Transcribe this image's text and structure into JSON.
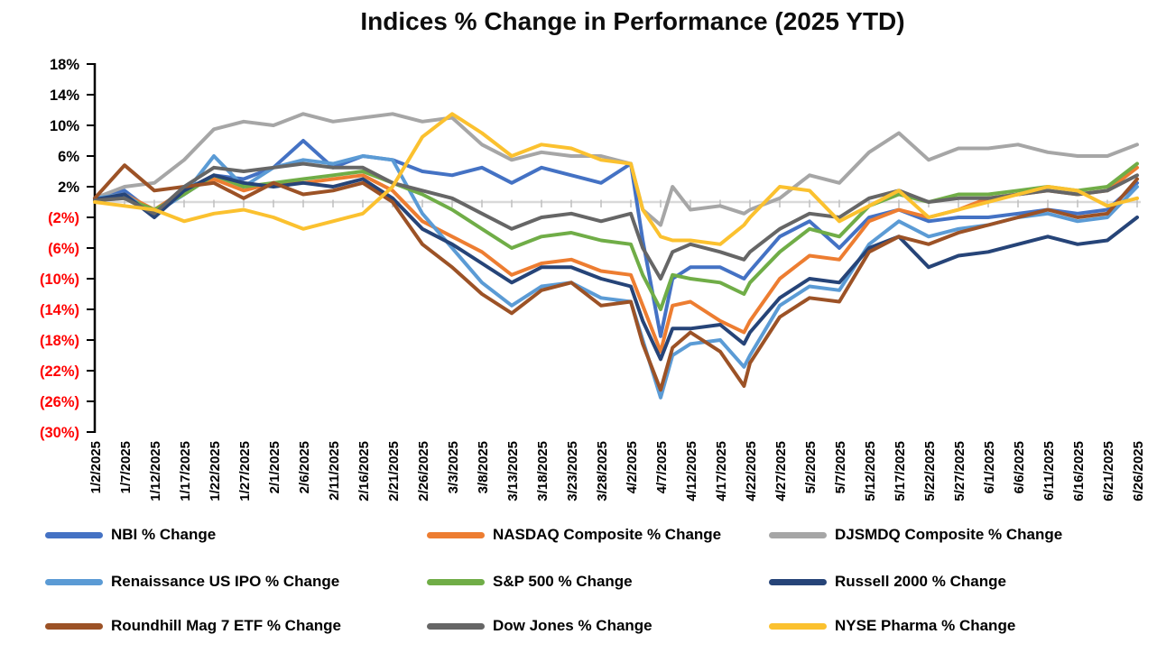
{
  "chart_data": {
    "type": "line",
    "title": "Indices % Change in Performance (2025 YTD)",
    "xlabel": "",
    "ylabel": "",
    "ylim": [
      -30,
      18
    ],
    "y_tick_step": 4,
    "grid": "horizontal-zero-line-only",
    "legend_position": "bottom",
    "axis_color": "#000000",
    "zero_line_color": "#d9d9d9",
    "x_tick_mark_color": "#bfbfbf",
    "positive_tick_label_color": "#000000",
    "negative_tick_label_color": "#ff0000",
    "y_ticks": [
      {
        "label": "18%",
        "value": 18
      },
      {
        "label": "14%",
        "value": 14
      },
      {
        "label": "10%",
        "value": 10
      },
      {
        "label": "6%",
        "value": 6
      },
      {
        "label": "2%",
        "value": 2
      },
      {
        "label": "(2%)",
        "value": -2
      },
      {
        "label": "(6%)",
        "value": -6
      },
      {
        "label": "(10%)",
        "value": -10
      },
      {
        "label": "(14%)",
        "value": -14
      },
      {
        "label": "(18%)",
        "value": -18
      },
      {
        "label": "(22%)",
        "value": -22
      },
      {
        "label": "(26%)",
        "value": -26
      },
      {
        "label": "(30%)",
        "value": -30
      }
    ],
    "categories": [
      "1/2/2025",
      "1/7/2025",
      "1/12/2025",
      "1/17/2025",
      "1/22/2025",
      "1/27/2025",
      "2/1/2025",
      "2/6/2025",
      "2/11/2025",
      "2/16/2025",
      "2/21/2025",
      "2/26/2025",
      "3/3/2025",
      "3/8/2025",
      "3/13/2025",
      "3/18/2025",
      "3/23/2025",
      "3/28/2025",
      "4/2/2025",
      "4/7/2025",
      "4/12/2025",
      "4/17/2025",
      "4/22/2025",
      "4/27/2025",
      "5/2/2025",
      "5/7/2025",
      "5/12/2025",
      "5/17/2025",
      "5/22/2025",
      "5/27/2025",
      "6/1/2025",
      "6/6/2025",
      "6/11/2025",
      "6/16/2025",
      "6/21/2025",
      "6/26/2025"
    ],
    "x_index": [
      0,
      1,
      2,
      3,
      4,
      5,
      6,
      7,
      8,
      9,
      10,
      11,
      12,
      13,
      14,
      15,
      16,
      17,
      18,
      18.4,
      19,
      19.4,
      20,
      21,
      21.8,
      22,
      23,
      24,
      25,
      26,
      27,
      28,
      29,
      30,
      31,
      32,
      33,
      34,
      35
    ],
    "series": [
      {
        "name": "NBI % Change",
        "color": "#4472c4",
        "values": [
          0.5,
          1.5,
          -1.5,
          1.0,
          3.5,
          3.0,
          4.5,
          8.0,
          4.5,
          6.0,
          5.5,
          4.0,
          3.5,
          4.5,
          2.5,
          4.5,
          3.5,
          2.5,
          5.0,
          -5.0,
          -17.5,
          -10.0,
          -8.5,
          -8.5,
          -10.0,
          -9.0,
          -4.5,
          -2.5,
          -6.0,
          -2.0,
          -1.0,
          -2.5,
          -2.0,
          -2.0,
          -1.5,
          -1.0,
          -1.5,
          -1.0,
          2.5
        ]
      },
      {
        "name": "NASDAQ Composite % Change",
        "color": "#ed7d31",
        "values": [
          0.5,
          1.0,
          -1.0,
          1.5,
          3.0,
          1.5,
          2.5,
          2.5,
          3.0,
          3.5,
          1.5,
          -2.5,
          -4.5,
          -6.5,
          -9.5,
          -8.0,
          -7.5,
          -9.0,
          -9.5,
          -13.5,
          -19.5,
          -13.5,
          -13.0,
          -15.5,
          -17.0,
          -15.5,
          -10.0,
          -7.0,
          -7.5,
          -2.5,
          -1.0,
          -2.0,
          -1.0,
          0.5,
          1.0,
          1.5,
          1.0,
          1.5,
          4.5
        ]
      },
      {
        "name": "DJSMDQ Composite % Change",
        "color": "#a6a6a6",
        "values": [
          0.5,
          2.0,
          2.5,
          5.5,
          9.5,
          10.5,
          10.0,
          11.5,
          10.5,
          11.0,
          11.5,
          10.5,
          11.0,
          7.5,
          5.5,
          6.5,
          6.0,
          6.0,
          5.0,
          -1.0,
          -3.0,
          2.0,
          -1.0,
          -0.5,
          -1.5,
          -1.0,
          0.5,
          3.5,
          2.5,
          6.5,
          9.0,
          5.5,
          7.0,
          7.0,
          7.5,
          6.5,
          6.0,
          6.0,
          7.5
        ]
      },
      {
        "name": "Renaissance US IPO % Change",
        "color": "#5b9bd5",
        "values": [
          0.5,
          1.0,
          -1.5,
          1.0,
          6.0,
          2.0,
          4.5,
          5.5,
          5.0,
          6.0,
          5.5,
          -1.5,
          -6.0,
          -10.5,
          -13.5,
          -11.0,
          -10.5,
          -12.5,
          -13.0,
          -18.0,
          -25.5,
          -20.0,
          -18.5,
          -18.0,
          -21.5,
          -20.0,
          -13.5,
          -11.0,
          -11.5,
          -5.5,
          -2.5,
          -4.5,
          -3.5,
          -3.0,
          -2.0,
          -1.5,
          -2.5,
          -2.0,
          2.0
        ]
      },
      {
        "name": "S&P 500 % Change",
        "color": "#70ad47",
        "values": [
          0.3,
          0.5,
          -1.0,
          1.0,
          3.5,
          2.0,
          2.5,
          3.0,
          3.5,
          4.0,
          2.5,
          1.0,
          -1.0,
          -3.5,
          -6.0,
          -4.5,
          -4.0,
          -5.0,
          -5.5,
          -9.5,
          -14.0,
          -9.5,
          -10.0,
          -10.5,
          -12.0,
          -10.5,
          -6.5,
          -3.5,
          -4.5,
          -0.5,
          1.0,
          0.0,
          1.0,
          1.0,
          1.5,
          2.0,
          1.5,
          2.0,
          5.0
        ]
      },
      {
        "name": "Russell 2000 % Change",
        "color": "#264478",
        "values": [
          0.3,
          1.0,
          -2.0,
          1.5,
          3.5,
          2.5,
          2.0,
          2.5,
          2.0,
          3.0,
          0.5,
          -3.5,
          -5.5,
          -8.0,
          -10.5,
          -8.5,
          -8.5,
          -10.0,
          -11.0,
          -15.5,
          -20.5,
          -16.5,
          -16.5,
          -16.0,
          -18.5,
          -17.0,
          -12.5,
          -10.0,
          -10.5,
          -6.0,
          -4.5,
          -8.5,
          -7.0,
          -6.5,
          -5.5,
          -4.5,
          -5.5,
          -5.0,
          -2.0
        ]
      },
      {
        "name": "Roundhill Mag 7 ETF % Change",
        "color": "#9c5226",
        "values": [
          0.5,
          4.8,
          1.5,
          2.0,
          2.5,
          0.5,
          2.5,
          1.0,
          1.5,
          2.5,
          0.0,
          -5.5,
          -8.5,
          -12.0,
          -14.5,
          -11.5,
          -10.5,
          -13.5,
          -13.0,
          -18.5,
          -24.5,
          -19.0,
          -17.0,
          -19.5,
          -24.0,
          -21.0,
          -15.0,
          -12.5,
          -13.0,
          -6.5,
          -4.5,
          -5.5,
          -4.0,
          -3.0,
          -2.0,
          -1.0,
          -2.0,
          -1.5,
          3.0
        ]
      },
      {
        "name": "Dow Jones % Change",
        "color": "#666666",
        "values": [
          0.2,
          0.5,
          -1.5,
          2.0,
          4.5,
          4.0,
          4.5,
          5.0,
          4.5,
          4.5,
          2.5,
          1.5,
          0.5,
          -1.5,
          -3.5,
          -2.0,
          -1.5,
          -2.5,
          -1.5,
          -6.0,
          -10.0,
          -6.5,
          -5.5,
          -6.5,
          -7.5,
          -6.5,
          -3.5,
          -1.5,
          -2.0,
          0.5,
          1.5,
          0.0,
          0.5,
          0.5,
          1.0,
          1.5,
          1.0,
          1.5,
          3.5
        ]
      },
      {
        "name": "NYSE Pharma % Change",
        "color": "#fbc12f",
        "values": [
          0.0,
          -0.5,
          -1.0,
          -2.5,
          -1.5,
          -1.0,
          -2.0,
          -3.5,
          -2.5,
          -1.5,
          2.0,
          8.5,
          11.5,
          9.0,
          6.0,
          7.5,
          7.0,
          5.5,
          5.0,
          -1.0,
          -4.5,
          -5.0,
          -5.0,
          -5.5,
          -3.0,
          -2.0,
          2.0,
          1.5,
          -2.5,
          -0.5,
          1.5,
          -2.0,
          -1.0,
          0.0,
          1.0,
          2.0,
          1.5,
          -0.5,
          0.5
        ]
      }
    ]
  }
}
